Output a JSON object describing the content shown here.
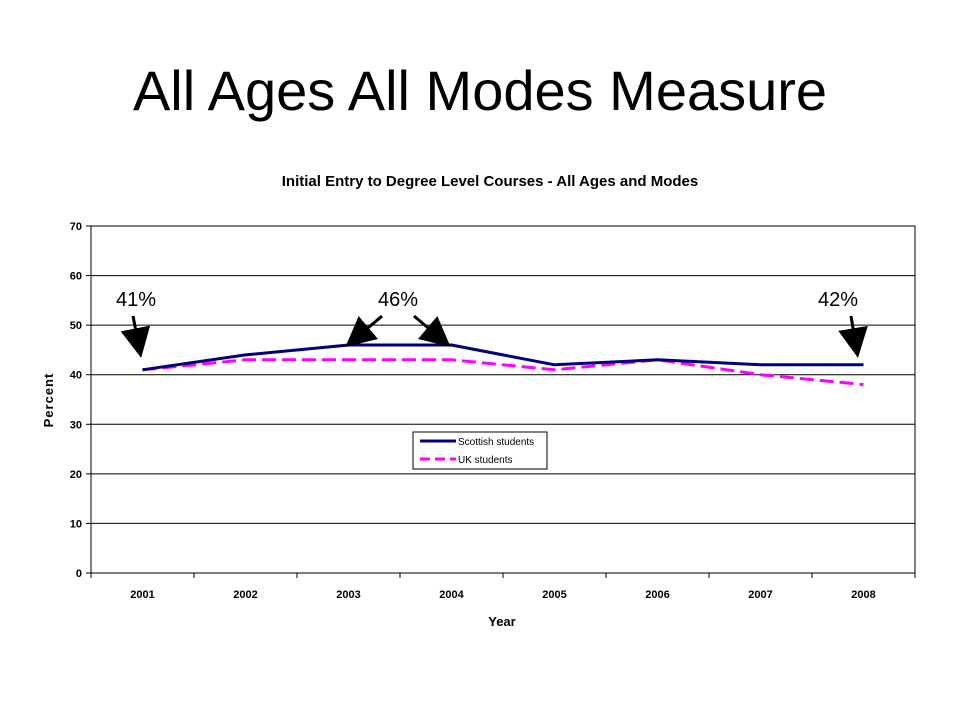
{
  "slide": {
    "title": "All Ages All Modes Measure"
  },
  "chart_data": {
    "type": "line",
    "title": "Initial Entry to Degree Level Courses - All Ages and Modes",
    "xlabel": "Year",
    "ylabel": "Percent",
    "categories": [
      "2001",
      "2002",
      "2003",
      "2004",
      "2005",
      "2006",
      "2007",
      "2008"
    ],
    "ylim": [
      0,
      70
    ],
    "yticks": [
      0,
      10,
      20,
      30,
      40,
      50,
      60,
      70
    ],
    "grid": true,
    "legend_position": "center",
    "series": [
      {
        "name": "Scottish students",
        "values": [
          41,
          44,
          46,
          46,
          42,
          43,
          42,
          42
        ],
        "color": "#000080",
        "style": "solid"
      },
      {
        "name": "UK students",
        "values": [
          41,
          43,
          43,
          43,
          41,
          43,
          40,
          38
        ],
        "color": "#ff00ff",
        "style": "dashed"
      }
    ],
    "annotations": [
      {
        "text": "41%",
        "category": "2001"
      },
      {
        "text": "46%",
        "category": "2003-2004"
      },
      {
        "text": "42%",
        "category": "2008"
      }
    ]
  },
  "colors": {
    "background": "#ffffff",
    "grid": "#000000",
    "text": "#000000"
  }
}
